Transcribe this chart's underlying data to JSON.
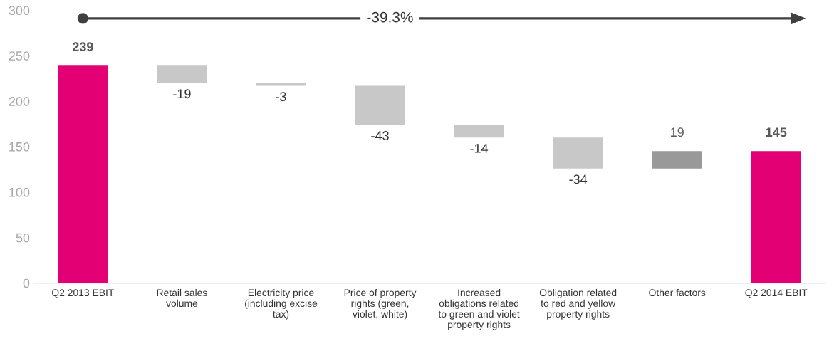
{
  "chart_data": {
    "type": "bar",
    "categories": [
      "Q2 2013 EBIT",
      "Retail sales\nvolume",
      "Electricity price\n(including excise\ntax)",
      "Price of property\nrights (green,\nviolet, white)",
      "Increased\nobligations related\nto green and violet\nproperty rights",
      "Obligation related\nto red and yellow\nproperty rights",
      "Other factors",
      "Q2 2014 EBIT"
    ],
    "values": [
      239,
      -19,
      -3,
      -43,
      -14,
      -34,
      19,
      145
    ],
    "base": [
      0,
      239,
      220,
      217,
      174,
      160,
      126,
      0
    ],
    "colors": [
      "#e20074",
      "#c8c8c8",
      "#c8c8c8",
      "#c8c8c8",
      "#c8c8c8",
      "#c8c8c8",
      "#999999",
      "#e20074"
    ],
    "ylim": [
      0,
      300
    ],
    "yticks": [
      0,
      50,
      100,
      150,
      200,
      250,
      300
    ],
    "grid": false,
    "data_labels": true,
    "annotations": [
      "-39.3%"
    ]
  }
}
